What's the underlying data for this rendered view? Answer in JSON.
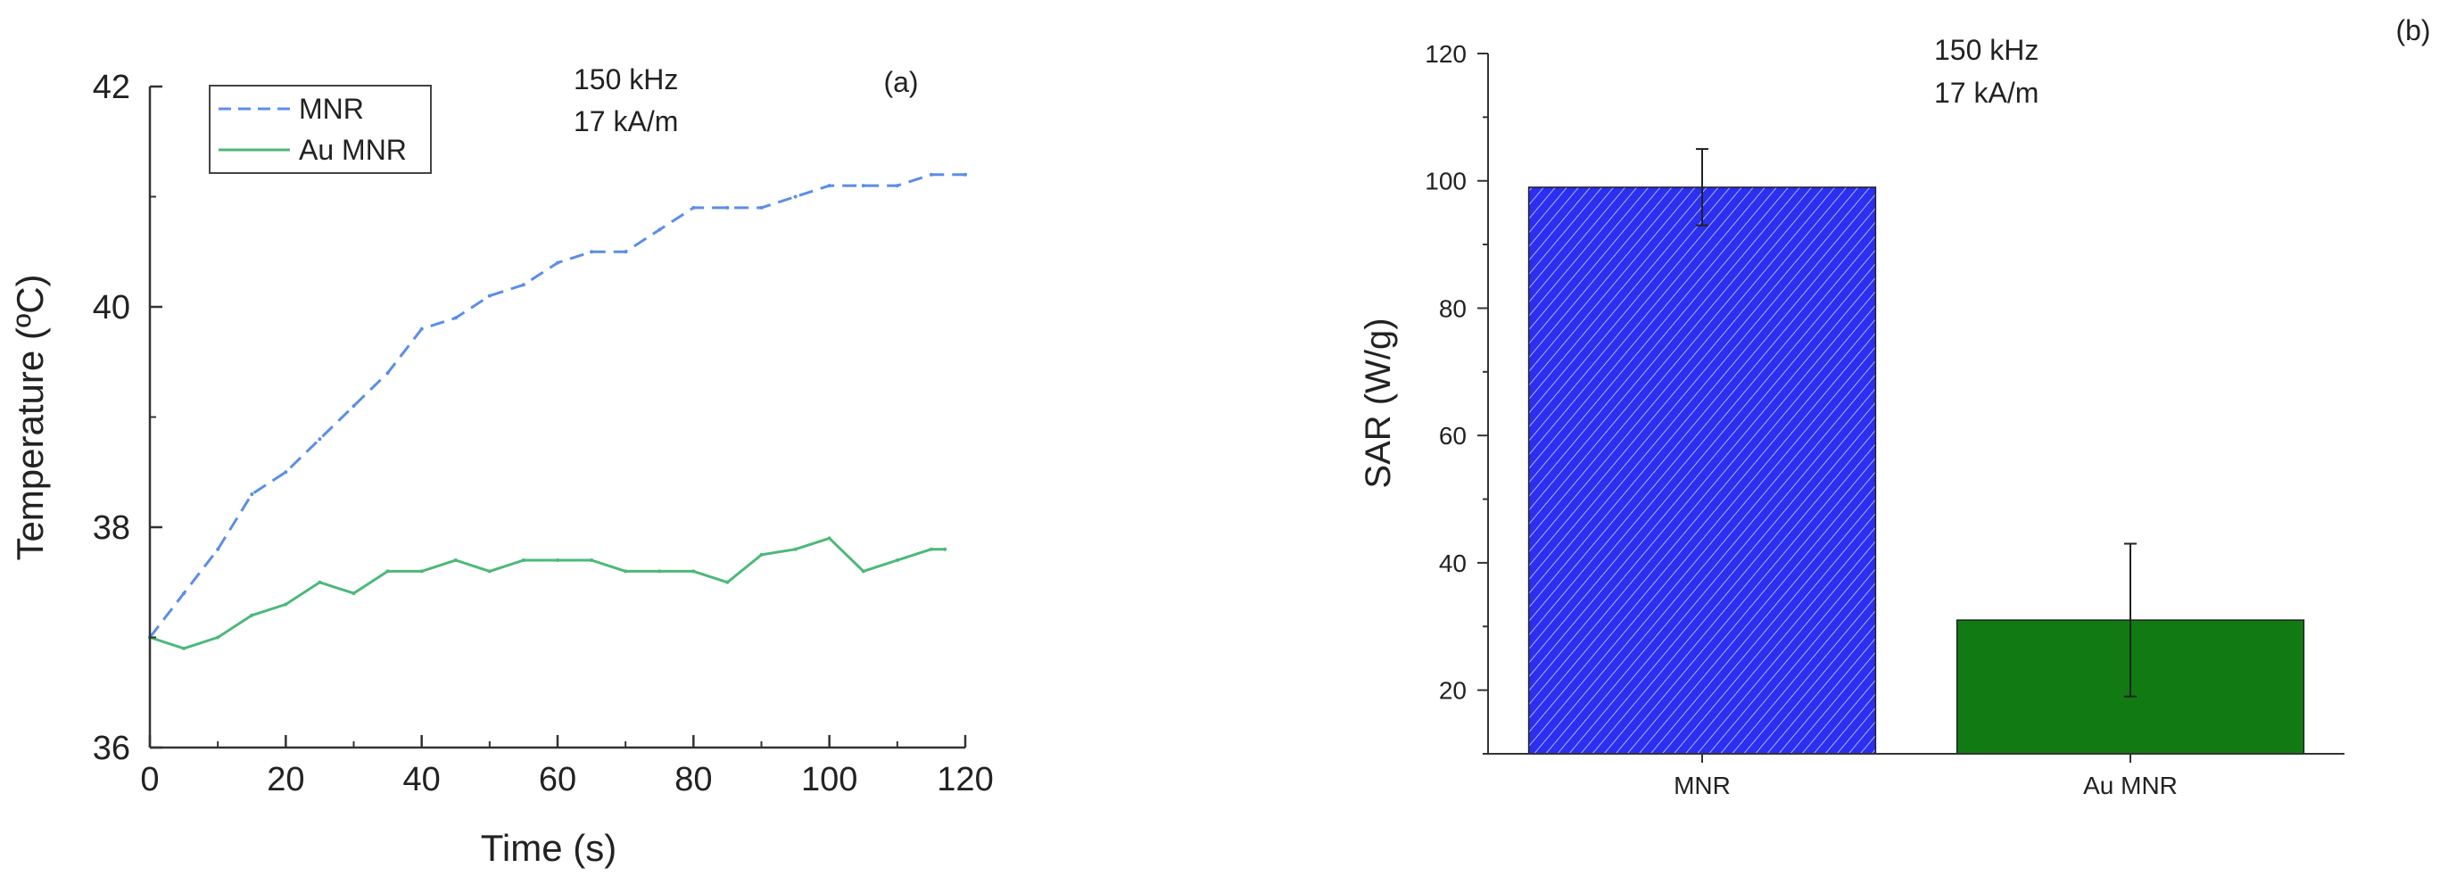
{
  "chart_data": [
    {
      "type": "line",
      "panel_label": "(a)",
      "xlabel": "Time (s)",
      "ylabel": "Temperature (ºC)",
      "xlim": [
        0,
        120
      ],
      "ylim": [
        36,
        42
      ],
      "x_ticks": [
        "0",
        "20",
        "40",
        "60",
        "80",
        "100",
        "120"
      ],
      "y_ticks": [
        "36",
        "38",
        "40",
        "42"
      ],
      "annotation": [
        "150 kHz",
        "17 kA/m"
      ],
      "legend_position": "top-left",
      "series": [
        {
          "name": "MNR",
          "color": "#5b8ee8",
          "style": "dashed",
          "x": [
            0,
            5,
            10,
            15,
            20,
            25,
            30,
            35,
            40,
            45,
            50,
            55,
            60,
            65,
            70,
            75,
            80,
            85,
            90,
            95,
            100,
            105,
            110,
            115,
            120
          ],
          "y": [
            37.0,
            37.4,
            37.8,
            38.3,
            38.5,
            38.8,
            39.1,
            39.4,
            39.8,
            39.9,
            40.1,
            40.2,
            40.4,
            40.5,
            40.5,
            40.7,
            40.9,
            40.9,
            40.9,
            41.0,
            41.1,
            41.1,
            41.1,
            41.2,
            41.2
          ]
        },
        {
          "name": "Au MNR",
          "color": "#4db879",
          "style": "solid",
          "x": [
            0,
            5,
            10,
            15,
            20,
            25,
            30,
            35,
            40,
            45,
            50,
            55,
            60,
            65,
            70,
            75,
            80,
            85,
            90,
            95,
            100,
            105,
            110,
            115,
            117
          ],
          "y": [
            37.0,
            36.9,
            37.0,
            37.2,
            37.3,
            37.5,
            37.4,
            37.6,
            37.6,
            37.7,
            37.6,
            37.7,
            37.7,
            37.7,
            37.6,
            37.6,
            37.6,
            37.5,
            37.75,
            37.8,
            37.9,
            37.6,
            37.7,
            37.8,
            37.8
          ]
        }
      ]
    },
    {
      "type": "bar",
      "panel_label": "(b)",
      "xlabel": "",
      "ylabel": "SAR (W/g)",
      "ylim": [
        10,
        120
      ],
      "y_ticks": [
        "20",
        "40",
        "60",
        "80",
        "100",
        "120"
      ],
      "annotation": [
        "150 kHz",
        "17 kA/m"
      ],
      "categories": [
        "MNR",
        "Au MNR"
      ],
      "values": [
        99,
        31
      ],
      "errors": [
        6,
        12
      ],
      "colors": [
        "#2b2ff0",
        "#127a12"
      ],
      "hatch": [
        true,
        false
      ]
    }
  ]
}
